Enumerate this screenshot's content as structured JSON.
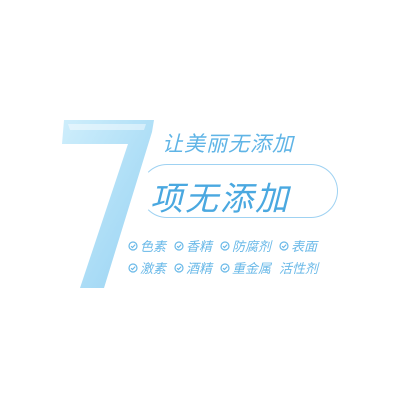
{
  "graphic": {
    "numeral": "7",
    "tagline": "让美丽无添加",
    "headline": "项无添加",
    "accent_color": "#5fb4e6",
    "numeral_color": "#a8dcf6",
    "badges_row1": [
      {
        "label": "色素",
        "icon": "check-circle-icon"
      },
      {
        "label": "香精",
        "icon": "check-circle-icon"
      },
      {
        "label": "防腐剂",
        "icon": "check-circle-icon"
      },
      {
        "label": "表面",
        "icon": "check-circle-icon"
      }
    ],
    "badges_row2": [
      {
        "label": "激素",
        "icon": "check-circle-icon"
      },
      {
        "label": "酒精",
        "icon": "check-circle-icon"
      },
      {
        "label": "重金属",
        "icon": "check-circle-icon"
      },
      {
        "label": "活性剂",
        "icon": null
      }
    ]
  }
}
